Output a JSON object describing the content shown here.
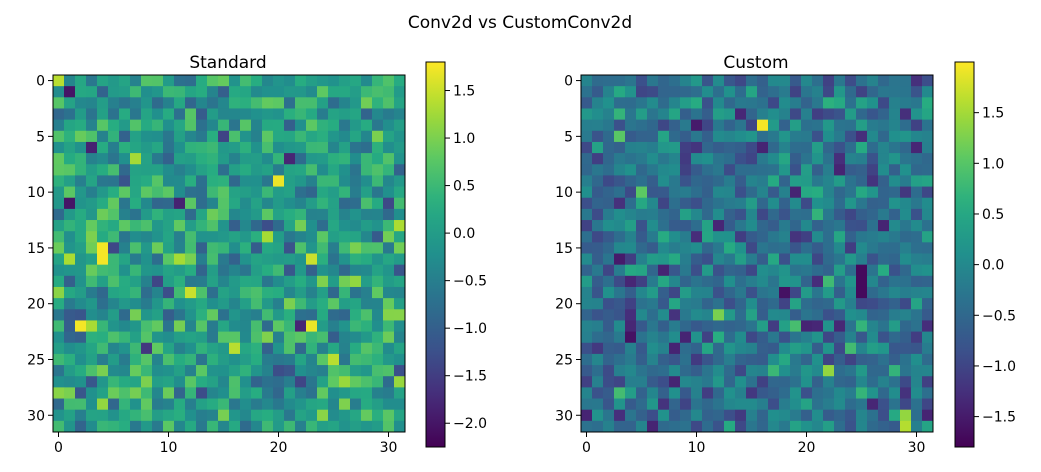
{
  "figure": {
    "title": "Conv2d vs CustomConv2d"
  },
  "chart_data": [
    {
      "type": "heatmap",
      "title": "Standard",
      "rows": 32,
      "cols": 32,
      "x_ticks": [
        0,
        10,
        20,
        30
      ],
      "y_ticks": [
        0,
        5,
        10,
        15,
        20,
        25,
        30
      ],
      "colorbar": {
        "min": -2.25,
        "max": 1.8,
        "ticks": [
          1.5,
          1.0,
          0.5,
          0.0,
          -0.5,
          -1.0,
          -1.5,
          -2.0
        ],
        "tick_labels": [
          "1.5",
          "1.0",
          "0.5",
          "0.0",
          "−0.5",
          "−1.0",
          "−1.5",
          "−2.0"
        ]
      },
      "colormap": "viridis",
      "values_note": "32x32 grid of values within the colorbar range; individual cell values are not labeled",
      "notable_cells": [
        {
          "row": 1,
          "col": 1,
          "value": -2.0
        },
        {
          "row": 11,
          "col": 1,
          "value": -2.0
        },
        {
          "row": 7,
          "col": 21,
          "value": -1.8
        },
        {
          "row": 22,
          "col": 22,
          "value": -1.8
        },
        {
          "row": 15,
          "col": 4,
          "value": 1.75
        },
        {
          "row": 16,
          "col": 4,
          "value": 1.75
        },
        {
          "row": 22,
          "col": 2,
          "value": 1.75
        },
        {
          "row": 22,
          "col": 23,
          "value": 1.7
        },
        {
          "row": 9,
          "col": 20,
          "value": 1.7
        },
        {
          "row": 16,
          "col": 23,
          "value": 1.5
        },
        {
          "row": 19,
          "col": 12,
          "value": 1.5
        }
      ]
    },
    {
      "type": "heatmap",
      "title": "Custom",
      "rows": 32,
      "cols": 32,
      "x_ticks": [
        0,
        10,
        20,
        30
      ],
      "y_ticks": [
        0,
        5,
        10,
        15,
        20,
        25,
        30
      ],
      "colorbar": {
        "min": -1.8,
        "max": 2.0,
        "ticks": [
          1.5,
          1.0,
          0.5,
          0.0,
          -0.5,
          -1.0,
          -1.5
        ],
        "tick_labels": [
          "1.5",
          "1.0",
          "0.5",
          "0.0",
          "−0.5",
          "−1.0",
          "−1.5"
        ]
      },
      "colormap": "viridis",
      "values_note": "32x32 grid of values within the colorbar range; individual cell values are not labeled",
      "notable_cells": [
        {
          "row": 4,
          "col": 16,
          "value": 1.95
        },
        {
          "row": 31,
          "col": 29,
          "value": 1.6
        },
        {
          "row": 30,
          "col": 29,
          "value": 1.4
        },
        {
          "row": 26,
          "col": 22,
          "value": 1.4
        },
        {
          "row": 17,
          "col": 25,
          "value": -1.7
        },
        {
          "row": 18,
          "col": 25,
          "value": -1.7
        },
        {
          "row": 19,
          "col": 25,
          "value": -1.7
        },
        {
          "row": 19,
          "col": 18,
          "value": -1.6
        },
        {
          "row": 23,
          "col": 4,
          "value": -1.6
        },
        {
          "row": 16,
          "col": 3,
          "value": -1.5
        },
        {
          "row": 4,
          "col": 10,
          "value": -1.5
        }
      ]
    }
  ]
}
